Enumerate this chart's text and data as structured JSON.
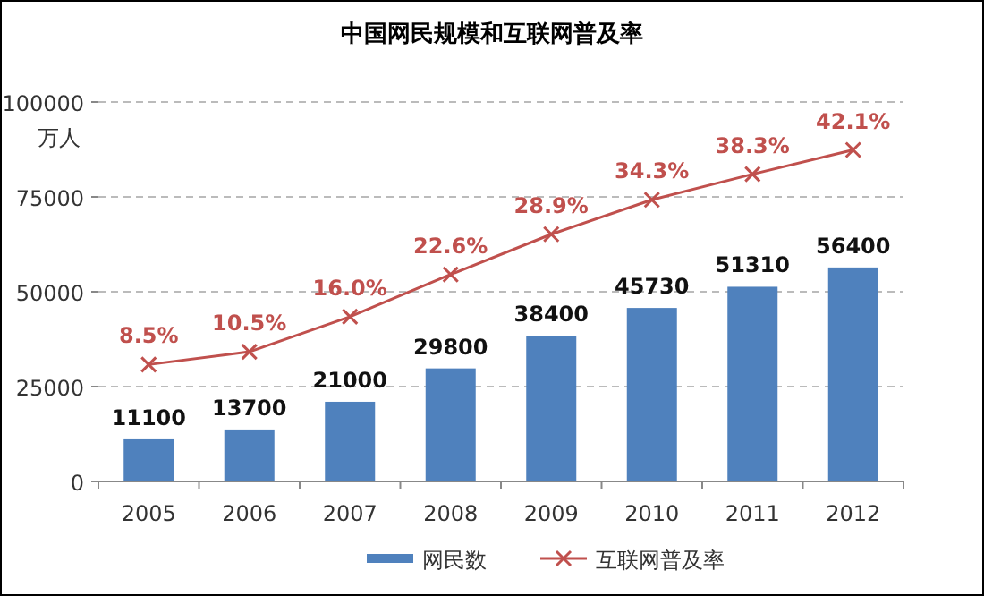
{
  "chart_data": {
    "type": "bar",
    "title": "中国网民规模和互联网普及率",
    "ylabel": "万人",
    "categories": [
      "2005",
      "2006",
      "2007",
      "2008",
      "2009",
      "2010",
      "2011",
      "2012"
    ],
    "series": [
      {
        "name": "网民数",
        "color": "#4f81bd",
        "values": [
          11100,
          13700,
          21000,
          29800,
          38400,
          45730,
          51310,
          56400
        ],
        "value_labels": [
          "11100",
          "13700",
          "21000",
          "29800",
          "38400",
          "45730",
          "51310",
          "56400"
        ]
      },
      {
        "name": "互联网普及率",
        "type": "line",
        "axis": "y2",
        "color": "#c0504d",
        "marker": "cross",
        "values": [
          8.5,
          10.5,
          16.0,
          22.6,
          28.9,
          34.3,
          38.3,
          42.1
        ],
        "value_labels": [
          "8.5%",
          "10.5%",
          "16.0%",
          "22.6%",
          "28.9%",
          "34.3%",
          "38.3%",
          "42.1%"
        ]
      }
    ],
    "ylim": [
      0,
      100000
    ],
    "yticks": [
      0,
      25000,
      50000,
      75000,
      100000
    ],
    "y2lim": [
      -9.8,
      49.6
    ],
    "grid": "y",
    "legend": "bottom"
  }
}
